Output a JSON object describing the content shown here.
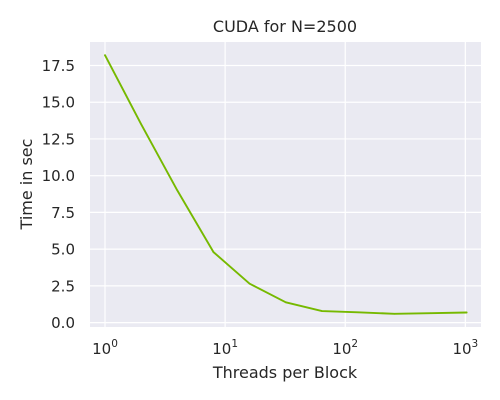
{
  "chart_data": {
    "type": "line",
    "title": "CUDA for N=2500",
    "xlabel": "Threads per Block",
    "ylabel": "Time in sec",
    "x_scale": "log",
    "xlim": [
      0.75,
      1350
    ],
    "ylim": [
      -0.3,
      19.1
    ],
    "x_ticks": [
      {
        "value": 1,
        "base": "10",
        "exp": "0"
      },
      {
        "value": 10,
        "base": "10",
        "exp": "1"
      },
      {
        "value": 100,
        "base": "10",
        "exp": "2"
      },
      {
        "value": 1000,
        "base": "10",
        "exp": "3"
      }
    ],
    "y_ticks": [
      {
        "value": 0,
        "label": "0.0"
      },
      {
        "value": 2.5,
        "label": "2.5"
      },
      {
        "value": 5,
        "label": "5.0"
      },
      {
        "value": 7.5,
        "label": "7.5"
      },
      {
        "value": 10,
        "label": "10.0"
      },
      {
        "value": 12.5,
        "label": "12.5"
      },
      {
        "value": 15,
        "label": "15.0"
      },
      {
        "value": 17.5,
        "label": "17.5"
      }
    ],
    "grid": true,
    "colors": {
      "background": "#eaeaf2",
      "grid": "#ffffff",
      "line": "#76b900"
    },
    "series": [
      {
        "x": [
          1,
          2,
          4,
          8,
          16,
          32,
          64,
          128,
          256,
          512,
          1024
        ],
        "values": [
          18.2,
          13.5,
          9.0,
          4.8,
          2.65,
          1.38,
          0.78,
          0.7,
          0.6,
          0.64,
          0.69
        ]
      }
    ]
  }
}
